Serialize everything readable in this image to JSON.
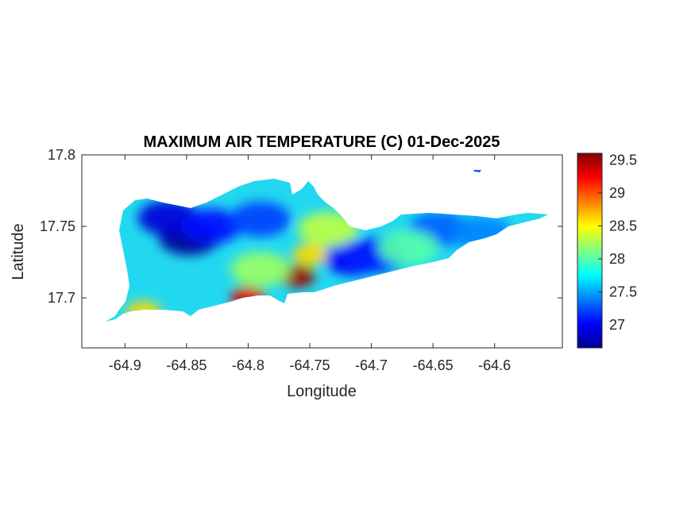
{
  "chart_data": {
    "type": "heatmap",
    "title": "MAXIMUM AIR TEMPERATURE (C) 01-Dec-2025",
    "xlabel": "Longitude",
    "ylabel": "Latitude",
    "xlim": [
      -64.935,
      -64.545
    ],
    "ylim": [
      17.665,
      17.8
    ],
    "xticks": [
      -64.9,
      -64.85,
      -64.8,
      -64.75,
      -64.7,
      -64.65,
      -64.6
    ],
    "xtick_labels": [
      "-64.9",
      "-64.85",
      "-64.8",
      "-64.75",
      "-64.7",
      "-64.65",
      "-64.6"
    ],
    "yticks": [
      17.7,
      17.75,
      17.8
    ],
    "ytick_labels": [
      "17.7",
      "17.75",
      "17.8"
    ],
    "colormap": "jet",
    "clim": [
      26.65,
      29.6
    ],
    "colorbar_ticks": [
      27,
      27.5,
      28,
      28.5,
      29,
      29.5
    ],
    "colorbar_labels": [
      "27",
      "27.5",
      "28",
      "28.5",
      "29",
      "29.5"
    ],
    "grid": false,
    "temperature_centers": [
      {
        "lon": -64.848,
        "lat": 17.742,
        "value": 26.7
      },
      {
        "lon": -64.865,
        "lat": 17.756,
        "value": 26.9
      },
      {
        "lon": -64.83,
        "lat": 17.75,
        "value": 27.05
      },
      {
        "lon": -64.79,
        "lat": 17.755,
        "value": 27.2
      },
      {
        "lon": -64.715,
        "lat": 17.728,
        "value": 27.0
      },
      {
        "lon": -64.695,
        "lat": 17.73,
        "value": 27.1
      },
      {
        "lon": -64.645,
        "lat": 17.748,
        "value": 27.3
      },
      {
        "lon": -64.76,
        "lat": 17.715,
        "value": 29.5
      },
      {
        "lon": -64.8,
        "lat": 17.7,
        "value": 29.3
      },
      {
        "lon": -64.75,
        "lat": 17.73,
        "value": 28.6
      },
      {
        "lon": -64.885,
        "lat": 17.69,
        "value": 28.6
      },
      {
        "lon": -64.79,
        "lat": 17.72,
        "value": 28.2
      },
      {
        "lon": -64.735,
        "lat": 17.748,
        "value": 28.3
      },
      {
        "lon": -64.67,
        "lat": 17.735,
        "value": 28.0
      },
      {
        "lon": -64.61,
        "lat": 17.745,
        "value": 27.4
      }
    ]
  },
  "colors": {
    "axis": "#262626",
    "background": "#ffffff"
  }
}
